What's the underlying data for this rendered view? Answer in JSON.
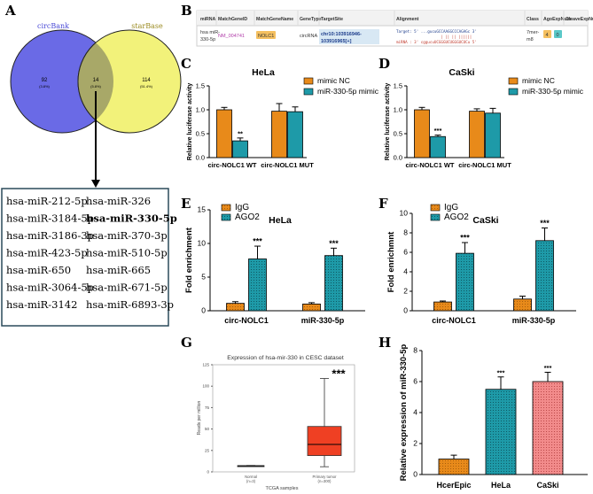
{
  "panel_labels": {
    "a": "A",
    "b": "B",
    "c": "C",
    "d": "D",
    "e": "E",
    "f": "F",
    "g": "G",
    "h": "H"
  },
  "venn": {
    "left_label": "circBank",
    "right_label": "starBase",
    "left_only": "92",
    "left_only_pct": "(3.8%)",
    "overlap": "14",
    "overlap_pct": "(5.8%)",
    "right_only": "114",
    "right_only_pct": "(51.4%)"
  },
  "mirna_list": {
    "col1": [
      "hsa-miR-212-5p",
      "hsa-miR-3184-5p",
      "hsa-miR-3186-3p",
      "hsa-miR-423-5p",
      "hsa-miR-650",
      "hsa-miR-3064-5p",
      "hsa-miR-3142"
    ],
    "col2": [
      "hsa-miR-326",
      "hsa-miR-330-5p",
      "hsa-miR-370-3p",
      "hsa-miR-510-5p",
      "hsa-miR-665",
      "hsa-miR-671-5p",
      "hsa-miR-6893-3p"
    ],
    "highlight": "hsa-miR-330-5p"
  },
  "table_b": {
    "headers": [
      "miRNA",
      "MatchGeneID",
      "MatchGeneName",
      "GeneType",
      "TargetSite",
      "Alignment",
      "Class",
      "AgoExpNum",
      "CleaveExpNum"
    ],
    "row": {
      "mirna_l1": "hsa miR-",
      "mirna_l2": "330-5p",
      "gene_id": "NM_004741",
      "gene_name": "NOLC1",
      "gene_type": "circRNA",
      "target_site_l1": "chr10:103916946-",
      "target_site_l2": "103916965[+]",
      "align_target": "Target: 5' ...gucuGCCAAGGCCCAGAGc 3'",
      "align_bars": "|  ||  ||  ||||||",
      "align_mirna": "miRNA : 3' cggucuUCGGGUCUGGGUCUCu 5'",
      "class_l1": "7mer-",
      "class_l2": "m8",
      "ago": "4",
      "cleave": "0"
    }
  },
  "colors": {
    "orange": "#E88A1A",
    "teal": "#1E9AA8",
    "pink": "#F28B8B",
    "venn_blue": "#6A6AE6",
    "venn_yellow": "#F2F27A",
    "venn_overlap": "#A8A868",
    "boxplot_red": "#EF4023"
  },
  "chart_data": [
    {
      "id": "C",
      "type": "bar",
      "title": "HeLa",
      "ylabel": "Relative luciferase  activity",
      "ylim": [
        0,
        1.5
      ],
      "yticks": [
        "0.0",
        "0.5",
        "1.0",
        "1.5"
      ],
      "categories": [
        "circ-NOLC1 WT",
        "circ-NOLC1 MUT"
      ],
      "series": [
        {
          "name": "mimic NC",
          "values": [
            1.0,
            0.97
          ],
          "errors": [
            0.05,
            0.16
          ]
        },
        {
          "name": "miR-330-5p mimic",
          "values": [
            0.35,
            0.96
          ],
          "errors": [
            0.06,
            0.1
          ]
        }
      ],
      "annotations": [
        "**",
        ""
      ]
    },
    {
      "id": "D",
      "type": "bar",
      "title": "CaSki",
      "ylabel": "Relative luciferase  activity",
      "ylim": [
        0,
        1.5
      ],
      "yticks": [
        "0.0",
        "0.5",
        "1.0",
        "1.5"
      ],
      "categories": [
        "circ-NOLC1 WT",
        "circ-NOLC1 MUT"
      ],
      "series": [
        {
          "name": "mimic NC",
          "values": [
            1.0,
            0.97
          ],
          "errors": [
            0.05,
            0.05
          ]
        },
        {
          "name": "miR-330-5p mimic",
          "values": [
            0.44,
            0.93
          ],
          "errors": [
            0.03,
            0.1
          ]
        }
      ],
      "annotations": [
        "***",
        ""
      ]
    },
    {
      "id": "E",
      "type": "bar",
      "title": "HeLa",
      "ylabel": "Fold enrichment",
      "ylim": [
        0,
        15
      ],
      "yticks": [
        "0",
        "5",
        "10",
        "15"
      ],
      "categories": [
        "circ-NOLC1",
        "miR-330-5p"
      ],
      "series": [
        {
          "name": "IgG",
          "values": [
            1.1,
            1.0
          ],
          "errors": [
            0.25,
            0.2
          ]
        },
        {
          "name": "AGO2",
          "values": [
            7.7,
            8.2
          ],
          "errors": [
            1.9,
            1.1
          ]
        }
      ],
      "annotations": [
        "***",
        "***"
      ]
    },
    {
      "id": "F",
      "type": "bar",
      "title": "CaSki",
      "ylabel": "Fold enrichmnt",
      "ylim": [
        0,
        10
      ],
      "yticks": [
        "0",
        "2",
        "4",
        "6",
        "8",
        "10"
      ],
      "categories": [
        "circ-NOLC1",
        "miR-330-5p"
      ],
      "series": [
        {
          "name": "IgG",
          "values": [
            0.9,
            1.2
          ],
          "errors": [
            0.1,
            0.3
          ]
        },
        {
          "name": "AGO2",
          "values": [
            5.9,
            7.2
          ],
          "errors": [
            1.1,
            1.3
          ]
        }
      ],
      "annotations": [
        "***",
        "***"
      ]
    },
    {
      "id": "G",
      "type": "box",
      "title": "Expression of hsa-mir-330 in CESC dataset",
      "ylabel": "Reads per million",
      "xlabel": "TCGA samples",
      "ylim": [
        0,
        125
      ],
      "yticks": [
        "0",
        "25",
        "50",
        "75",
        "100",
        "125"
      ],
      "categories": [
        "Normal\n(n=3)",
        "Primary tumor\n(n=300)"
      ],
      "boxes": [
        {
          "min": 6.5,
          "q1": 6.7,
          "median": 7.0,
          "q3": 7.3,
          "max": 7.5
        },
        {
          "min": 6,
          "q1": 19,
          "median": 32,
          "q3": 53,
          "max": 109
        }
      ],
      "annotations": [
        "",
        "***"
      ]
    },
    {
      "id": "H",
      "type": "bar",
      "ylabel": "Relative expression of miR-330-5p",
      "ylim": [
        0,
        8
      ],
      "yticks": [
        "0",
        "2",
        "4",
        "6",
        "8"
      ],
      "categories": [
        "HcerEpic",
        "HeLa",
        "CaSki"
      ],
      "values": [
        1.0,
        5.5,
        6.0
      ],
      "errors": [
        0.25,
        0.8,
        0.6
      ],
      "annotations": [
        "",
        "***",
        "***"
      ]
    }
  ]
}
